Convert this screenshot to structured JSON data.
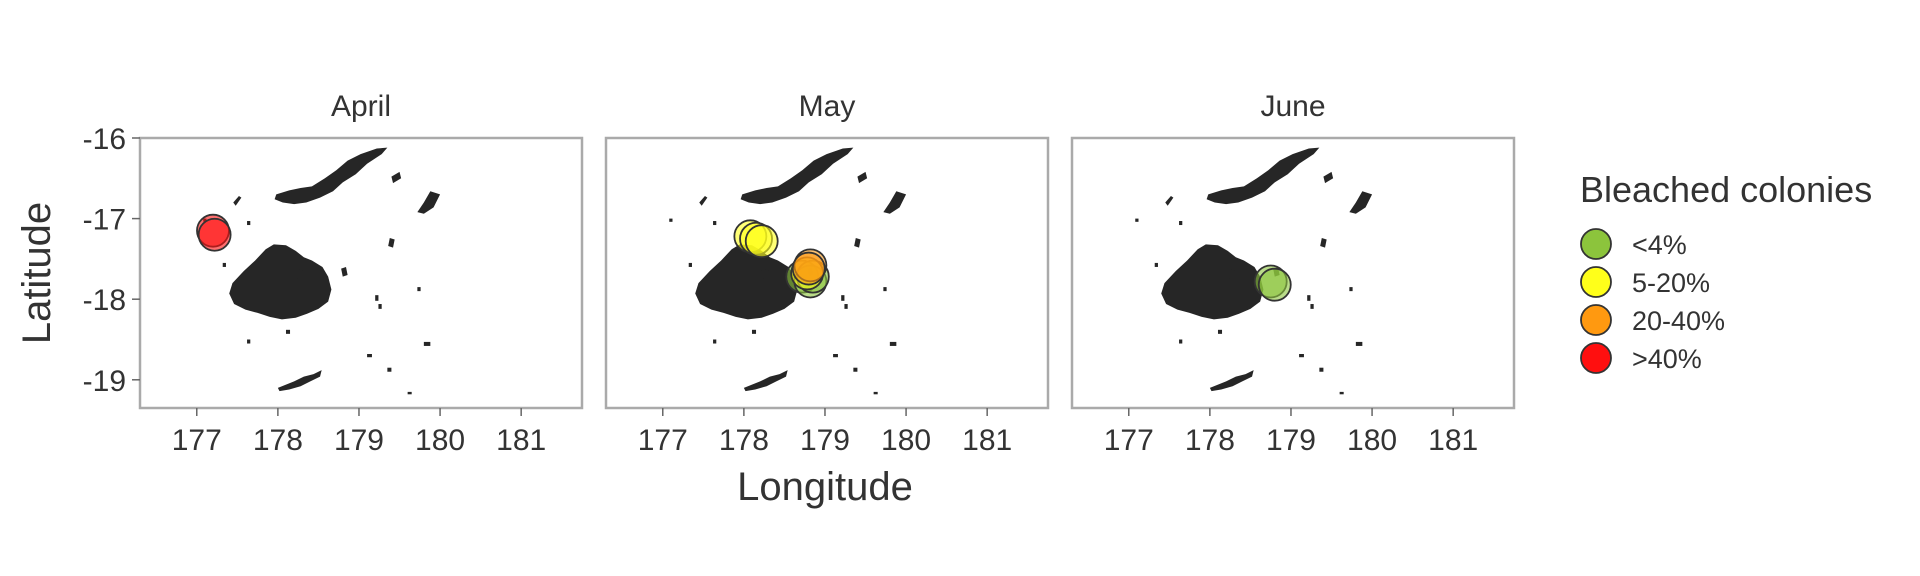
{
  "chart_data": {
    "type": "scatter",
    "subtype": "faceted map",
    "xlabel": "Longitude",
    "ylabel": "Latitude",
    "xlim": [
      176.3,
      181.75
    ],
    "ylim": [
      -19.35,
      -16.0
    ],
    "x_ticks": [
      177,
      178,
      179,
      180,
      181
    ],
    "y_ticks": [
      -16,
      -17,
      -18,
      -19
    ],
    "x_tick_labels": [
      "177",
      "178",
      "179",
      "180",
      "181"
    ],
    "y_tick_labels": [
      "-16",
      "-17",
      "-18",
      "-19"
    ],
    "grid": false,
    "legend": {
      "title": "Bleached colonies",
      "placement": "right",
      "entries": [
        {
          "label": "<4%",
          "color": "#8cc43c"
        },
        {
          "label": "5-20%",
          "color": "#ffff1a"
        },
        {
          "label": "20-40%",
          "color": "#ff9910"
        },
        {
          "label": ">40%",
          "color": "#ff0f0f"
        }
      ]
    },
    "facets": [
      {
        "title": "April",
        "points": [
          {
            "lon": 177.2,
            "lat": -17.15,
            "category": ">40%"
          },
          {
            "lon": 177.22,
            "lat": -17.2,
            "category": ">40%"
          }
        ]
      },
      {
        "title": "May",
        "points": [
          {
            "lon": 178.08,
            "lat": -17.22,
            "category": "5-20%"
          },
          {
            "lon": 178.15,
            "lat": -17.25,
            "category": "5-20%"
          },
          {
            "lon": 178.22,
            "lat": -17.28,
            "category": "5-20%"
          },
          {
            "lon": 178.72,
            "lat": -17.72,
            "category": "<4%"
          },
          {
            "lon": 178.82,
            "lat": -17.78,
            "category": "<4%"
          },
          {
            "lon": 178.85,
            "lat": -17.72,
            "category": "<4%"
          },
          {
            "lon": 178.78,
            "lat": -17.68,
            "category": "5-20%"
          },
          {
            "lon": 178.82,
            "lat": -17.58,
            "category": "20-40%"
          },
          {
            "lon": 178.8,
            "lat": -17.62,
            "category": "20-40%"
          }
        ]
      },
      {
        "title": "June",
        "points": [
          {
            "lon": 178.75,
            "lat": -17.78,
            "category": "<4%"
          },
          {
            "lon": 178.8,
            "lat": -17.82,
            "category": "<4%"
          }
        ]
      }
    ]
  }
}
